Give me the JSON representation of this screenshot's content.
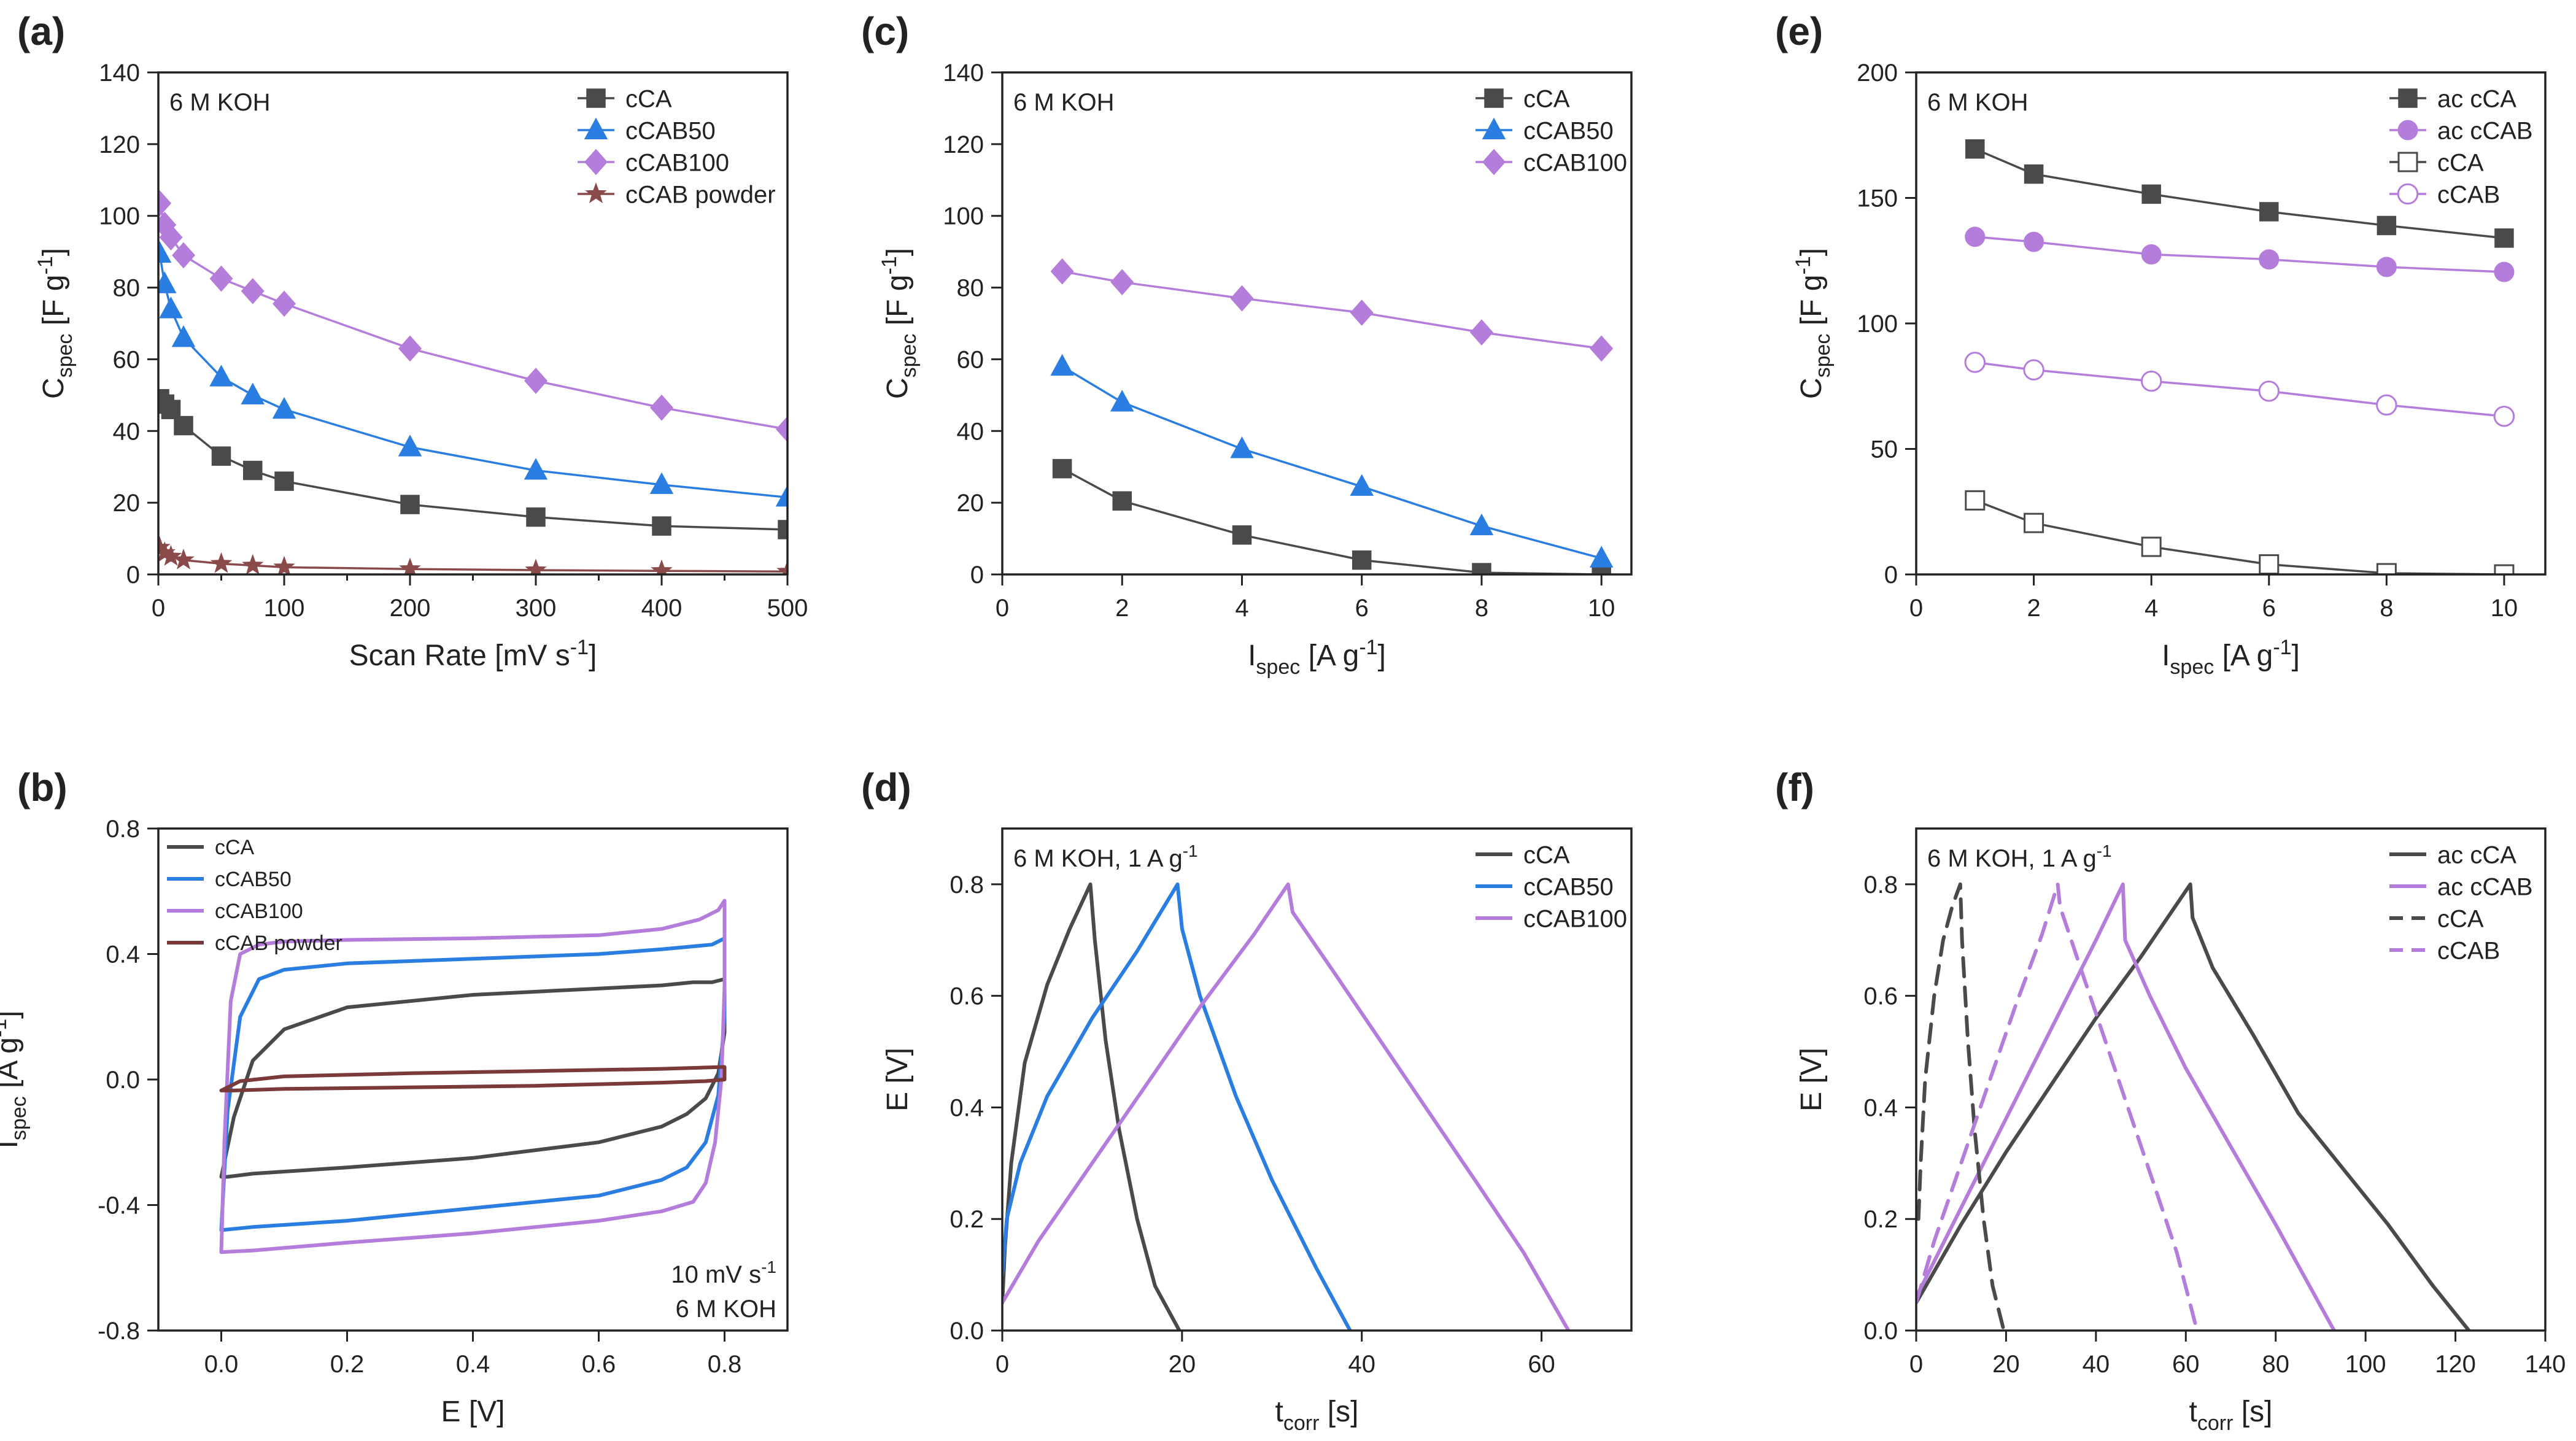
{
  "figure": {
    "panels": [
      {
        "id": "a",
        "panel_label": "(a)",
        "type": "line",
        "annotation": "6 M KOH",
        "xlabel": {
          "main": "Scan Rate [mV s",
          "sup": "-1",
          "tail": "]"
        },
        "ylabel": {
          "main": "C",
          "sub": "spec",
          "tail": " [F g",
          "sup": "-1",
          "close": "]"
        },
        "xlim": [
          0,
          500
        ],
        "ylim": [
          0,
          140
        ],
        "xticks": [
          0,
          100,
          200,
          300,
          400,
          500
        ],
        "yticks": [
          0,
          20,
          40,
          60,
          80,
          100,
          120,
          140
        ],
        "xminor": true,
        "legend_position": "top-right",
        "series": [
          {
            "name": "cCA",
            "color": "#4a4a4a",
            "marker": "square",
            "fill": true,
            "x": [
              1,
              5,
              10,
              20,
              50,
              75,
              100,
              200,
              300,
              400,
              500
            ],
            "y": [
              49,
              47.5,
              46,
              41.5,
              33,
              29,
              26,
              19.5,
              16,
              13.5,
              12.5
            ]
          },
          {
            "name": "cCAB50",
            "color": "#2a7de1",
            "marker": "triangle",
            "fill": true,
            "x": [
              1,
              5,
              10,
              20,
              50,
              75,
              100,
              200,
              300,
              400,
              500
            ],
            "y": [
              89.5,
              81,
              74,
              66,
              55,
              50,
              46,
              35.5,
              29,
              25,
              21.5
            ]
          },
          {
            "name": "cCAB100",
            "color": "#b57ddb",
            "marker": "diamond",
            "fill": true,
            "x": [
              1,
              5,
              10,
              20,
              50,
              75,
              100,
              200,
              300,
              400,
              500
            ],
            "y": [
              103.5,
              97.5,
              94,
              89,
              82.5,
              79,
              75.5,
              63,
              54,
              46.5,
              40.5
            ]
          },
          {
            "name": "cCAB powder",
            "color": "#8a4a4a",
            "marker": "star",
            "fill": true,
            "x": [
              1,
              5,
              10,
              20,
              50,
              75,
              100,
              200,
              300,
              400,
              500
            ],
            "y": [
              7.5,
              6,
              5,
              4,
              3,
              2.5,
              2,
              1.5,
              1.2,
              1,
              0.8
            ]
          }
        ]
      },
      {
        "id": "b",
        "panel_label": "(b)",
        "type": "line",
        "annotation": "10 mV s",
        "annotation_sup": "-1",
        "annotation2": "6 M KOH",
        "xlabel": {
          "main": "E [V]"
        },
        "ylabel": {
          "main": "I",
          "sub": "spec",
          "tail": " [A g",
          "sup": "-1",
          "close": "]"
        },
        "xlim": [
          -0.1,
          0.9
        ],
        "ylim": [
          -0.8,
          0.8
        ],
        "xticks": [
          0.0,
          0.2,
          0.4,
          0.6,
          0.8
        ],
        "xtick_labels": [
          "0.0",
          "0.2",
          "0.4",
          "0.6",
          "0.8"
        ],
        "yticks": [
          -0.8,
          -0.4,
          0.0,
          0.4,
          0.8
        ],
        "ytick_labels": [
          "-0.8",
          "-0.4",
          "0.0",
          "0.4",
          "0.8"
        ],
        "legend_position": "top-left",
        "series": [
          {
            "name": "cCA",
            "color": "#4a4a4a",
            "marker": "none",
            "x": [
              0.0,
              0.02,
              0.05,
              0.1,
              0.2,
              0.4,
              0.6,
              0.7,
              0.75,
              0.78,
              0.8,
              0.8,
              0.79,
              0.77,
              0.74,
              0.7,
              0.6,
              0.4,
              0.2,
              0.05,
              0.01,
              0.0,
              0.0
            ],
            "y": [
              -0.31,
              -0.12,
              0.06,
              0.16,
              0.23,
              0.27,
              0.29,
              0.3,
              0.31,
              0.31,
              0.32,
              0.15,
              0.02,
              -0.06,
              -0.11,
              -0.15,
              -0.2,
              -0.25,
              -0.28,
              -0.3,
              -0.31,
              -0.31,
              -0.31
            ]
          },
          {
            "name": "cCAB50",
            "color": "#2a7de1",
            "marker": "none",
            "x": [
              0.0,
              0.01,
              0.03,
              0.06,
              0.1,
              0.2,
              0.4,
              0.6,
              0.7,
              0.78,
              0.8,
              0.8,
              0.79,
              0.77,
              0.74,
              0.7,
              0.6,
              0.4,
              0.2,
              0.05,
              0.0,
              0.0
            ],
            "y": [
              -0.48,
              -0.1,
              0.2,
              0.32,
              0.35,
              0.37,
              0.385,
              0.4,
              0.415,
              0.43,
              0.45,
              0.2,
              -0.05,
              -0.2,
              -0.28,
              -0.32,
              -0.37,
              -0.41,
              -0.45,
              -0.47,
              -0.48,
              -0.48
            ]
          },
          {
            "name": "cCAB100",
            "color": "#b57ddb",
            "marker": "none",
            "x": [
              0.0,
              0.005,
              0.015,
              0.03,
              0.06,
              0.1,
              0.2,
              0.4,
              0.6,
              0.7,
              0.76,
              0.79,
              0.8,
              0.8,
              0.795,
              0.785,
              0.77,
              0.75,
              0.7,
              0.6,
              0.4,
              0.2,
              0.05,
              0.0,
              0.0
            ],
            "y": [
              -0.55,
              -0.2,
              0.25,
              0.4,
              0.43,
              0.44,
              0.445,
              0.45,
              0.46,
              0.48,
              0.51,
              0.54,
              0.57,
              0.3,
              0.0,
              -0.2,
              -0.33,
              -0.39,
              -0.42,
              -0.45,
              -0.49,
              -0.52,
              -0.545,
              -0.55,
              -0.55
            ]
          },
          {
            "name": "cCAB powder",
            "color": "#7a3a3a",
            "marker": "none",
            "x": [
              0.0,
              0.03,
              0.1,
              0.3,
              0.5,
              0.7,
              0.8,
              0.8,
              0.77,
              0.7,
              0.5,
              0.3,
              0.1,
              0.02,
              0.0,
              0.0
            ],
            "y": [
              -0.035,
              -0.005,
              0.01,
              0.02,
              0.027,
              0.034,
              0.04,
              0.0,
              -0.005,
              -0.01,
              -0.02,
              -0.025,
              -0.03,
              -0.035,
              -0.035,
              -0.035
            ]
          }
        ]
      },
      {
        "id": "c",
        "panel_label": "(c)",
        "type": "line",
        "annotation": "6 M KOH",
        "xlabel": {
          "main": "I",
          "sub": "spec",
          "tail": " [A g",
          "sup": "-1",
          "close": "]"
        },
        "ylabel": {
          "main": "C",
          "sub": "spec",
          "tail": " [F g",
          "sup": "-1",
          "close": "]"
        },
        "xlim": [
          0,
          10.5
        ],
        "ylim": [
          0,
          140
        ],
        "xticks": [
          0,
          2,
          4,
          6,
          8,
          10
        ],
        "yticks": [
          0,
          20,
          40,
          60,
          80,
          100,
          120,
          140
        ],
        "legend_position": "top-right",
        "series": [
          {
            "name": "cCA",
            "color": "#4a4a4a",
            "marker": "square",
            "fill": true,
            "x": [
              1,
              2,
              4,
              6,
              8,
              10
            ],
            "y": [
              29.5,
              20.5,
              11,
              4,
              0.5,
              0
            ]
          },
          {
            "name": "cCAB50",
            "color": "#2a7de1",
            "marker": "triangle",
            "fill": true,
            "x": [
              1,
              2,
              4,
              6,
              8,
              10
            ],
            "y": [
              58,
              48,
              35,
              24.5,
              13.5,
              4.5
            ]
          },
          {
            "name": "cCAB100",
            "color": "#b57ddb",
            "marker": "diamond",
            "fill": true,
            "x": [
              1,
              2,
              4,
              6,
              8,
              10
            ],
            "y": [
              84.5,
              81.5,
              77,
              73,
              67.5,
              63
            ]
          }
        ]
      },
      {
        "id": "d",
        "panel_label": "(d)",
        "type": "line",
        "annotation": "6 M KOH, 1 A g",
        "annotation_sup": "-1",
        "xlabel": {
          "main": "t",
          "sub": "corr",
          "tail": " [s]"
        },
        "ylabel": {
          "main": "E [V]"
        },
        "xlim": [
          0,
          70
        ],
        "ylim": [
          0,
          0.9
        ],
        "xticks": [
          0,
          20,
          40,
          60
        ],
        "yticks": [
          0.0,
          0.2,
          0.4,
          0.6,
          0.8
        ],
        "ytick_labels": [
          "0.0",
          "0.2",
          "0.4",
          "0.6",
          "0.8"
        ],
        "legend_position": "top-right",
        "series": [
          {
            "name": "cCA",
            "color": "#4a4a4a",
            "marker": "none",
            "x": [
              0,
              0.3,
              1,
              2.5,
              5,
              7.5,
              9.8,
              10.3,
              11.5,
              13,
              15,
              17,
              19.7
            ],
            "y": [
              0.05,
              0.15,
              0.3,
              0.48,
              0.62,
              0.72,
              0.8,
              0.7,
              0.52,
              0.36,
              0.2,
              0.08,
              0
            ]
          },
          {
            "name": "cCAB50",
            "color": "#2a7de1",
            "marker": "none",
            "x": [
              0,
              0.5,
              2,
              5,
              10,
              15,
              19.5,
              20,
              22,
              26,
              30,
              35,
              38.7
            ],
            "y": [
              0.1,
              0.2,
              0.3,
              0.42,
              0.56,
              0.68,
              0.8,
              0.72,
              0.6,
              0.42,
              0.27,
              0.11,
              0
            ]
          },
          {
            "name": "cCAB100",
            "color": "#b57ddb",
            "marker": "none",
            "x": [
              0,
              4,
              10,
              16,
              22,
              28,
              31.8,
              32.3,
              37,
              45,
              53,
              58,
              63
            ],
            "y": [
              0.05,
              0.16,
              0.3,
              0.44,
              0.58,
              0.71,
              0.8,
              0.75,
              0.64,
              0.45,
              0.26,
              0.14,
              0
            ]
          }
        ]
      },
      {
        "id": "e",
        "panel_label": "(e)",
        "type": "line",
        "annotation": "6 M KOH",
        "xlabel": {
          "main": "I",
          "sub": "spec",
          "tail": " [A g",
          "sup": "-1",
          "close": "]"
        },
        "ylabel": {
          "main": "C",
          "sub": "spec",
          "tail": " [F g",
          "sup": "-1",
          "close": "]"
        },
        "xlim": [
          0,
          10.7
        ],
        "ylim": [
          0,
          200
        ],
        "xticks": [
          0,
          2,
          4,
          6,
          8,
          10
        ],
        "yticks": [
          0,
          50,
          100,
          150,
          200
        ],
        "legend_position": "top-right",
        "series": [
          {
            "name": "ac cCA",
            "color": "#4a4a4a",
            "marker": "square",
            "fill": true,
            "x": [
              1,
              2,
              4,
              6,
              8,
              10
            ],
            "y": [
              169.5,
              159.5,
              151.5,
              144.5,
              139,
              134
            ]
          },
          {
            "name": "ac cCAB",
            "color": "#b57ddb",
            "marker": "circle",
            "fill": true,
            "x": [
              1,
              2,
              4,
              6,
              8,
              10
            ],
            "y": [
              134.5,
              132.5,
              127.5,
              125.5,
              122.5,
              120.5
            ]
          },
          {
            "name": "cCA",
            "color": "#4a4a4a",
            "marker": "square",
            "fill": false,
            "x": [
              1,
              2,
              4,
              6,
              8,
              10
            ],
            "y": [
              29.5,
              20.5,
              11,
              4,
              0.5,
              0
            ]
          },
          {
            "name": "cCAB",
            "color": "#b57ddb",
            "marker": "circle",
            "fill": false,
            "x": [
              1,
              2,
              4,
              6,
              8,
              10
            ],
            "y": [
              84.5,
              81.5,
              77,
              73,
              67.5,
              63
            ]
          }
        ]
      },
      {
        "id": "f",
        "panel_label": "(f)",
        "type": "line",
        "annotation": "6 M KOH, 1 A g",
        "annotation_sup": "-1",
        "xlabel": {
          "main": "t",
          "sub": "corr",
          "tail": " [s]"
        },
        "ylabel": {
          "main": "E [V]"
        },
        "xlim": [
          0,
          140
        ],
        "ylim": [
          0,
          0.9
        ],
        "xticks": [
          0,
          20,
          40,
          60,
          80,
          100,
          120,
          140
        ],
        "yticks": [
          0.0,
          0.2,
          0.4,
          0.6,
          0.8
        ],
        "ytick_labels": [
          "0.0",
          "0.2",
          "0.4",
          "0.6",
          "0.8"
        ],
        "legend_position": "top-right",
        "series": [
          {
            "name": "ac cCA",
            "color": "#4a4a4a",
            "marker": "none",
            "dash": false,
            "x": [
              0,
              10,
              20,
              30,
              40,
              50,
              61,
              61.5,
              66,
              75,
              85,
              95,
              105,
              115,
              123
            ],
            "y": [
              0.05,
              0.19,
              0.32,
              0.44,
              0.56,
              0.67,
              0.8,
              0.74,
              0.65,
              0.53,
              0.39,
              0.29,
              0.19,
              0.08,
              0
            ]
          },
          {
            "name": "ac cCAB",
            "color": "#b57ddb",
            "marker": "none",
            "dash": false,
            "x": [
              0,
              5,
              10,
              20,
              30,
              40,
              46,
              46.5,
              52,
              60,
              70,
              80,
              93
            ],
            "y": [
              0.06,
              0.14,
              0.22,
              0.38,
              0.54,
              0.7,
              0.8,
              0.7,
              0.6,
              0.47,
              0.33,
              0.19,
              0
            ]
          },
          {
            "name": "cCA",
            "color": "#4a4a4a",
            "marker": "none",
            "dash": true,
            "x": [
              0.5,
              1,
              2,
              4,
              6,
              8,
              9.8,
              10.2,
              11.5,
              13,
              15,
              17,
              19.5
            ],
            "y": [
              0.2,
              0.3,
              0.45,
              0.6,
              0.7,
              0.76,
              0.8,
              0.7,
              0.52,
              0.36,
              0.2,
              0.08,
              0
            ]
          },
          {
            "name": "cCAB",
            "color": "#b57ddb",
            "marker": "none",
            "dash": true,
            "x": [
              0,
              4,
              10,
              16,
              22,
              28,
              31.5,
              32,
              37,
              45,
              53,
              58,
              62.5
            ],
            "y": [
              0.05,
              0.16,
              0.3,
              0.44,
              0.58,
              0.71,
              0.8,
              0.76,
              0.64,
              0.45,
              0.26,
              0.14,
              0
            ]
          }
        ]
      }
    ]
  }
}
